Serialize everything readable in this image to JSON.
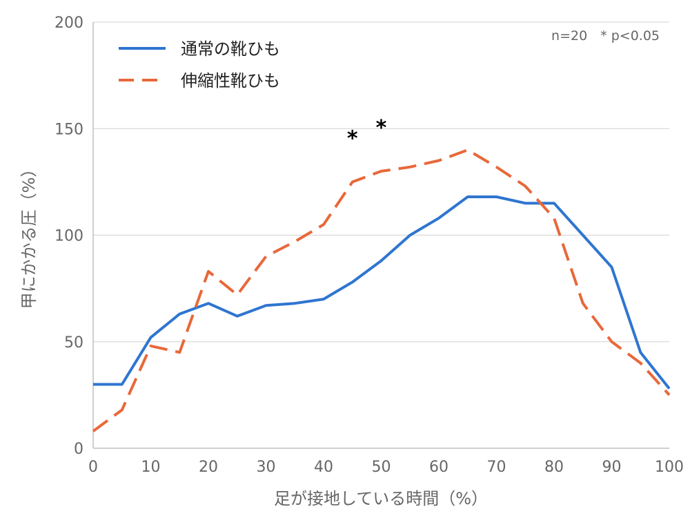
{
  "chart_data": {
    "type": "line",
    "xlabel": "足が接地している時間（%）",
    "ylabel": "甲にかかる圧（%）",
    "xlim": [
      0,
      100
    ],
    "ylim": [
      0,
      200
    ],
    "x_ticks": [
      0,
      10,
      20,
      30,
      40,
      50,
      60,
      70,
      80,
      90,
      100
    ],
    "y_ticks": [
      0,
      50,
      100,
      150,
      200
    ],
    "grid": "horizontal",
    "legend_position": "top-left",
    "note": "n=20　* p<0.05",
    "significance_markers": [
      {
        "x": 45,
        "y": 146,
        "label": "*"
      },
      {
        "x": 50,
        "y": 151,
        "label": "*"
      }
    ],
    "series": [
      {
        "name": "通常の靴ひも",
        "style": "solid",
        "color": "#2f75d0",
        "x": [
          0,
          5,
          10,
          15,
          20,
          25,
          30,
          35,
          40,
          45,
          50,
          55,
          60,
          65,
          70,
          75,
          80,
          85,
          90,
          95,
          100
        ],
        "values": [
          30,
          30,
          52,
          63,
          68,
          62,
          67,
          68,
          70,
          78,
          88,
          100,
          108,
          118,
          118,
          115,
          115,
          100,
          85,
          45,
          28
        ]
      },
      {
        "name": "伸縮性靴ひも",
        "style": "dashed",
        "color": "#e8683a",
        "x": [
          0,
          5,
          10,
          15,
          20,
          25,
          30,
          35,
          40,
          45,
          50,
          55,
          60,
          65,
          70,
          75,
          80,
          85,
          90,
          95,
          100
        ],
        "values": [
          8,
          18,
          48,
          45,
          83,
          72,
          90,
          97,
          105,
          125,
          130,
          132,
          135,
          140,
          132,
          123,
          108,
          68,
          50,
          40,
          25
        ]
      }
    ]
  }
}
